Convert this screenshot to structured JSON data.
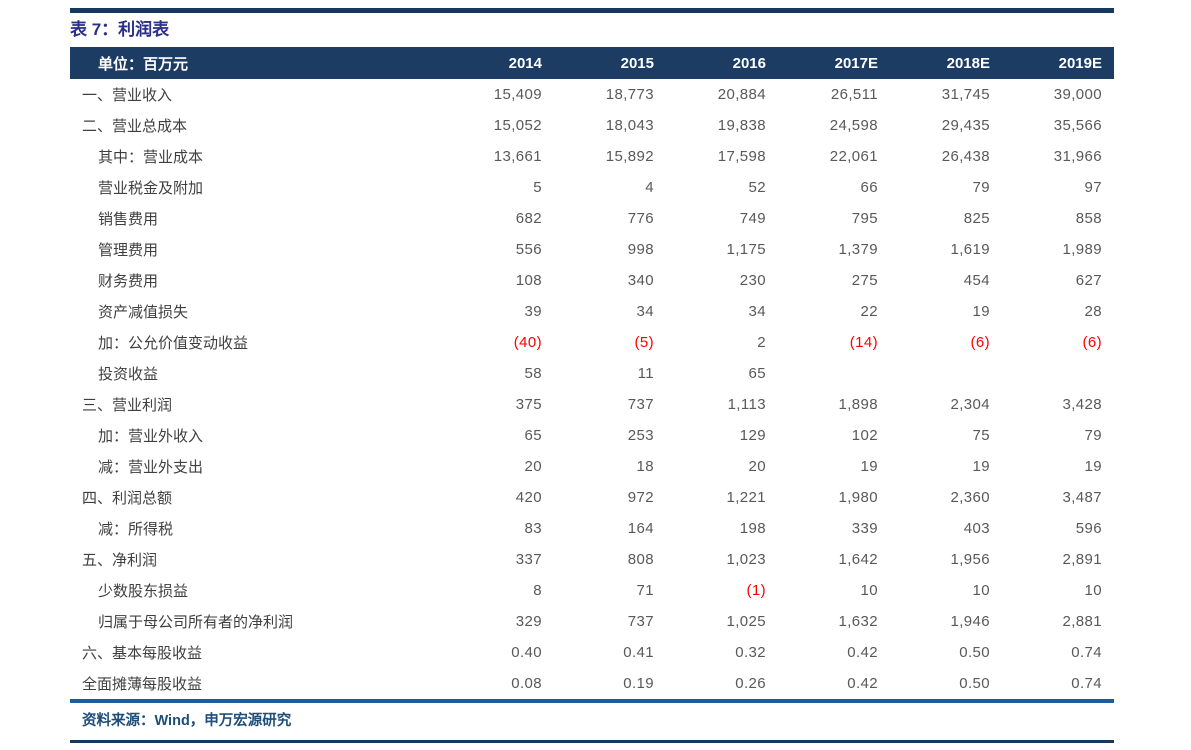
{
  "title": "表 7：利润表",
  "source": "资料来源：Wind，申万宏源研究",
  "colors": {
    "header_band": "#1C3C64",
    "rule_navy": "#17375E",
    "rule_accent": "#1F5C99",
    "title_text": "#2B2F85",
    "source_text": "#1F4E79",
    "label_text": "#3F3F3F",
    "value_text": "#595959",
    "negative_value": "#FF0000"
  },
  "table": {
    "unit_label": "单位：百万元",
    "columns": [
      "2014",
      "2015",
      "2016",
      "2017E",
      "2018E",
      "2019E"
    ],
    "rows": [
      {
        "label": "一、营业收入",
        "indent": 0,
        "values": [
          "15,409",
          "18,773",
          "20,884",
          "26,511",
          "31,745",
          "39,000"
        ]
      },
      {
        "label": "二、营业总成本",
        "indent": 0,
        "values": [
          "15,052",
          "18,043",
          "19,838",
          "24,598",
          "29,435",
          "35,566"
        ]
      },
      {
        "label": "其中：营业成本",
        "indent": 1,
        "values": [
          "13,661",
          "15,892",
          "17,598",
          "22,061",
          "26,438",
          "31,966"
        ]
      },
      {
        "label": "营业税金及附加",
        "indent": 1,
        "values": [
          "5",
          "4",
          "52",
          "66",
          "79",
          "97"
        ]
      },
      {
        "label": "销售费用",
        "indent": 1,
        "values": [
          "682",
          "776",
          "749",
          "795",
          "825",
          "858"
        ]
      },
      {
        "label": "管理费用",
        "indent": 1,
        "values": [
          "556",
          "998",
          "1,175",
          "1,379",
          "1,619",
          "1,989"
        ]
      },
      {
        "label": "财务费用",
        "indent": 1,
        "values": [
          "108",
          "340",
          "230",
          "275",
          "454",
          "627"
        ]
      },
      {
        "label": "资产减值损失",
        "indent": 1,
        "values": [
          "39",
          "34",
          "34",
          "22",
          "19",
          "28"
        ]
      },
      {
        "label": "加：公允价值变动收益",
        "indent": 1,
        "values": [
          "(40)",
          "(5)",
          "2",
          "(14)",
          "(6)",
          "(6)"
        ]
      },
      {
        "label": "投资收益",
        "indent": 1,
        "values": [
          "58",
          "11",
          "65",
          "",
          "",
          ""
        ]
      },
      {
        "label": "三、营业利润",
        "indent": 0,
        "values": [
          "375",
          "737",
          "1,113",
          "1,898",
          "2,304",
          "3,428"
        ]
      },
      {
        "label": "加：营业外收入",
        "indent": 1,
        "values": [
          "65",
          "253",
          "129",
          "102",
          "75",
          "79"
        ]
      },
      {
        "label": "减：营业外支出",
        "indent": 1,
        "values": [
          "20",
          "18",
          "20",
          "19",
          "19",
          "19"
        ]
      },
      {
        "label": "四、利润总额",
        "indent": 0,
        "values": [
          "420",
          "972",
          "1,221",
          "1,980",
          "2,360",
          "3,487"
        ]
      },
      {
        "label": "减：所得税",
        "indent": 1,
        "values": [
          "83",
          "164",
          "198",
          "339",
          "403",
          "596"
        ]
      },
      {
        "label": "五、净利润",
        "indent": 0,
        "values": [
          "337",
          "808",
          "1,023",
          "1,642",
          "1,956",
          "2,891"
        ]
      },
      {
        "label": "少数股东损益",
        "indent": 1,
        "values": [
          "8",
          "71",
          "(1)",
          "10",
          "10",
          "10"
        ]
      },
      {
        "label": "归属于母公司所有者的净利润",
        "indent": 1,
        "values": [
          "329",
          "737",
          "1,025",
          "1,632",
          "1,946",
          "2,881"
        ]
      },
      {
        "label": "六、基本每股收益",
        "indent": 0,
        "values": [
          "0.40",
          "0.41",
          "0.32",
          "0.42",
          "0.50",
          "0.74"
        ]
      },
      {
        "label": "全面摊薄每股收益",
        "indent": 0,
        "values": [
          "0.08",
          "0.19",
          "0.26",
          "0.42",
          "0.50",
          "0.74"
        ]
      }
    ]
  }
}
